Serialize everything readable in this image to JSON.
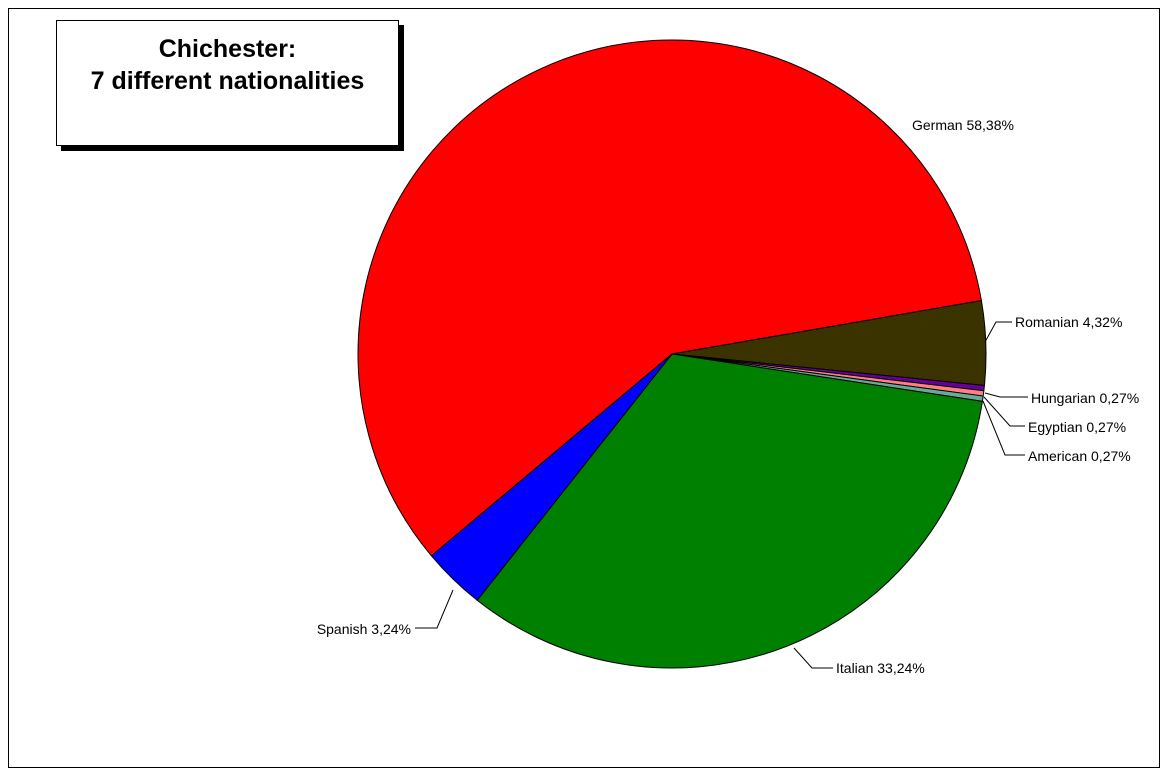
{
  "chart_data": {
    "type": "pie",
    "title": "Chichester:",
    "subtitle": "7 different nationalities",
    "slices": [
      {
        "label": "German 58,38%",
        "value": 58.38,
        "color": "#ff0000"
      },
      {
        "label": "Romanian 4,32%",
        "value": 4.32,
        "color": "#3a3300"
      },
      {
        "label": "Hungarian 0,27%",
        "value": 0.27,
        "color": "#660099"
      },
      {
        "label": "Egyptian 0,27%",
        "value": 0.27,
        "color": "#ff8080"
      },
      {
        "label": "American 0,27%",
        "value": 0.27,
        "color": "#66aa99"
      },
      {
        "label": "Italian 33,24%",
        "value": 33.24,
        "color": "#008000"
      },
      {
        "label": "Spanish 3,24%",
        "value": 3.24,
        "color": "#0000ff"
      }
    ]
  }
}
